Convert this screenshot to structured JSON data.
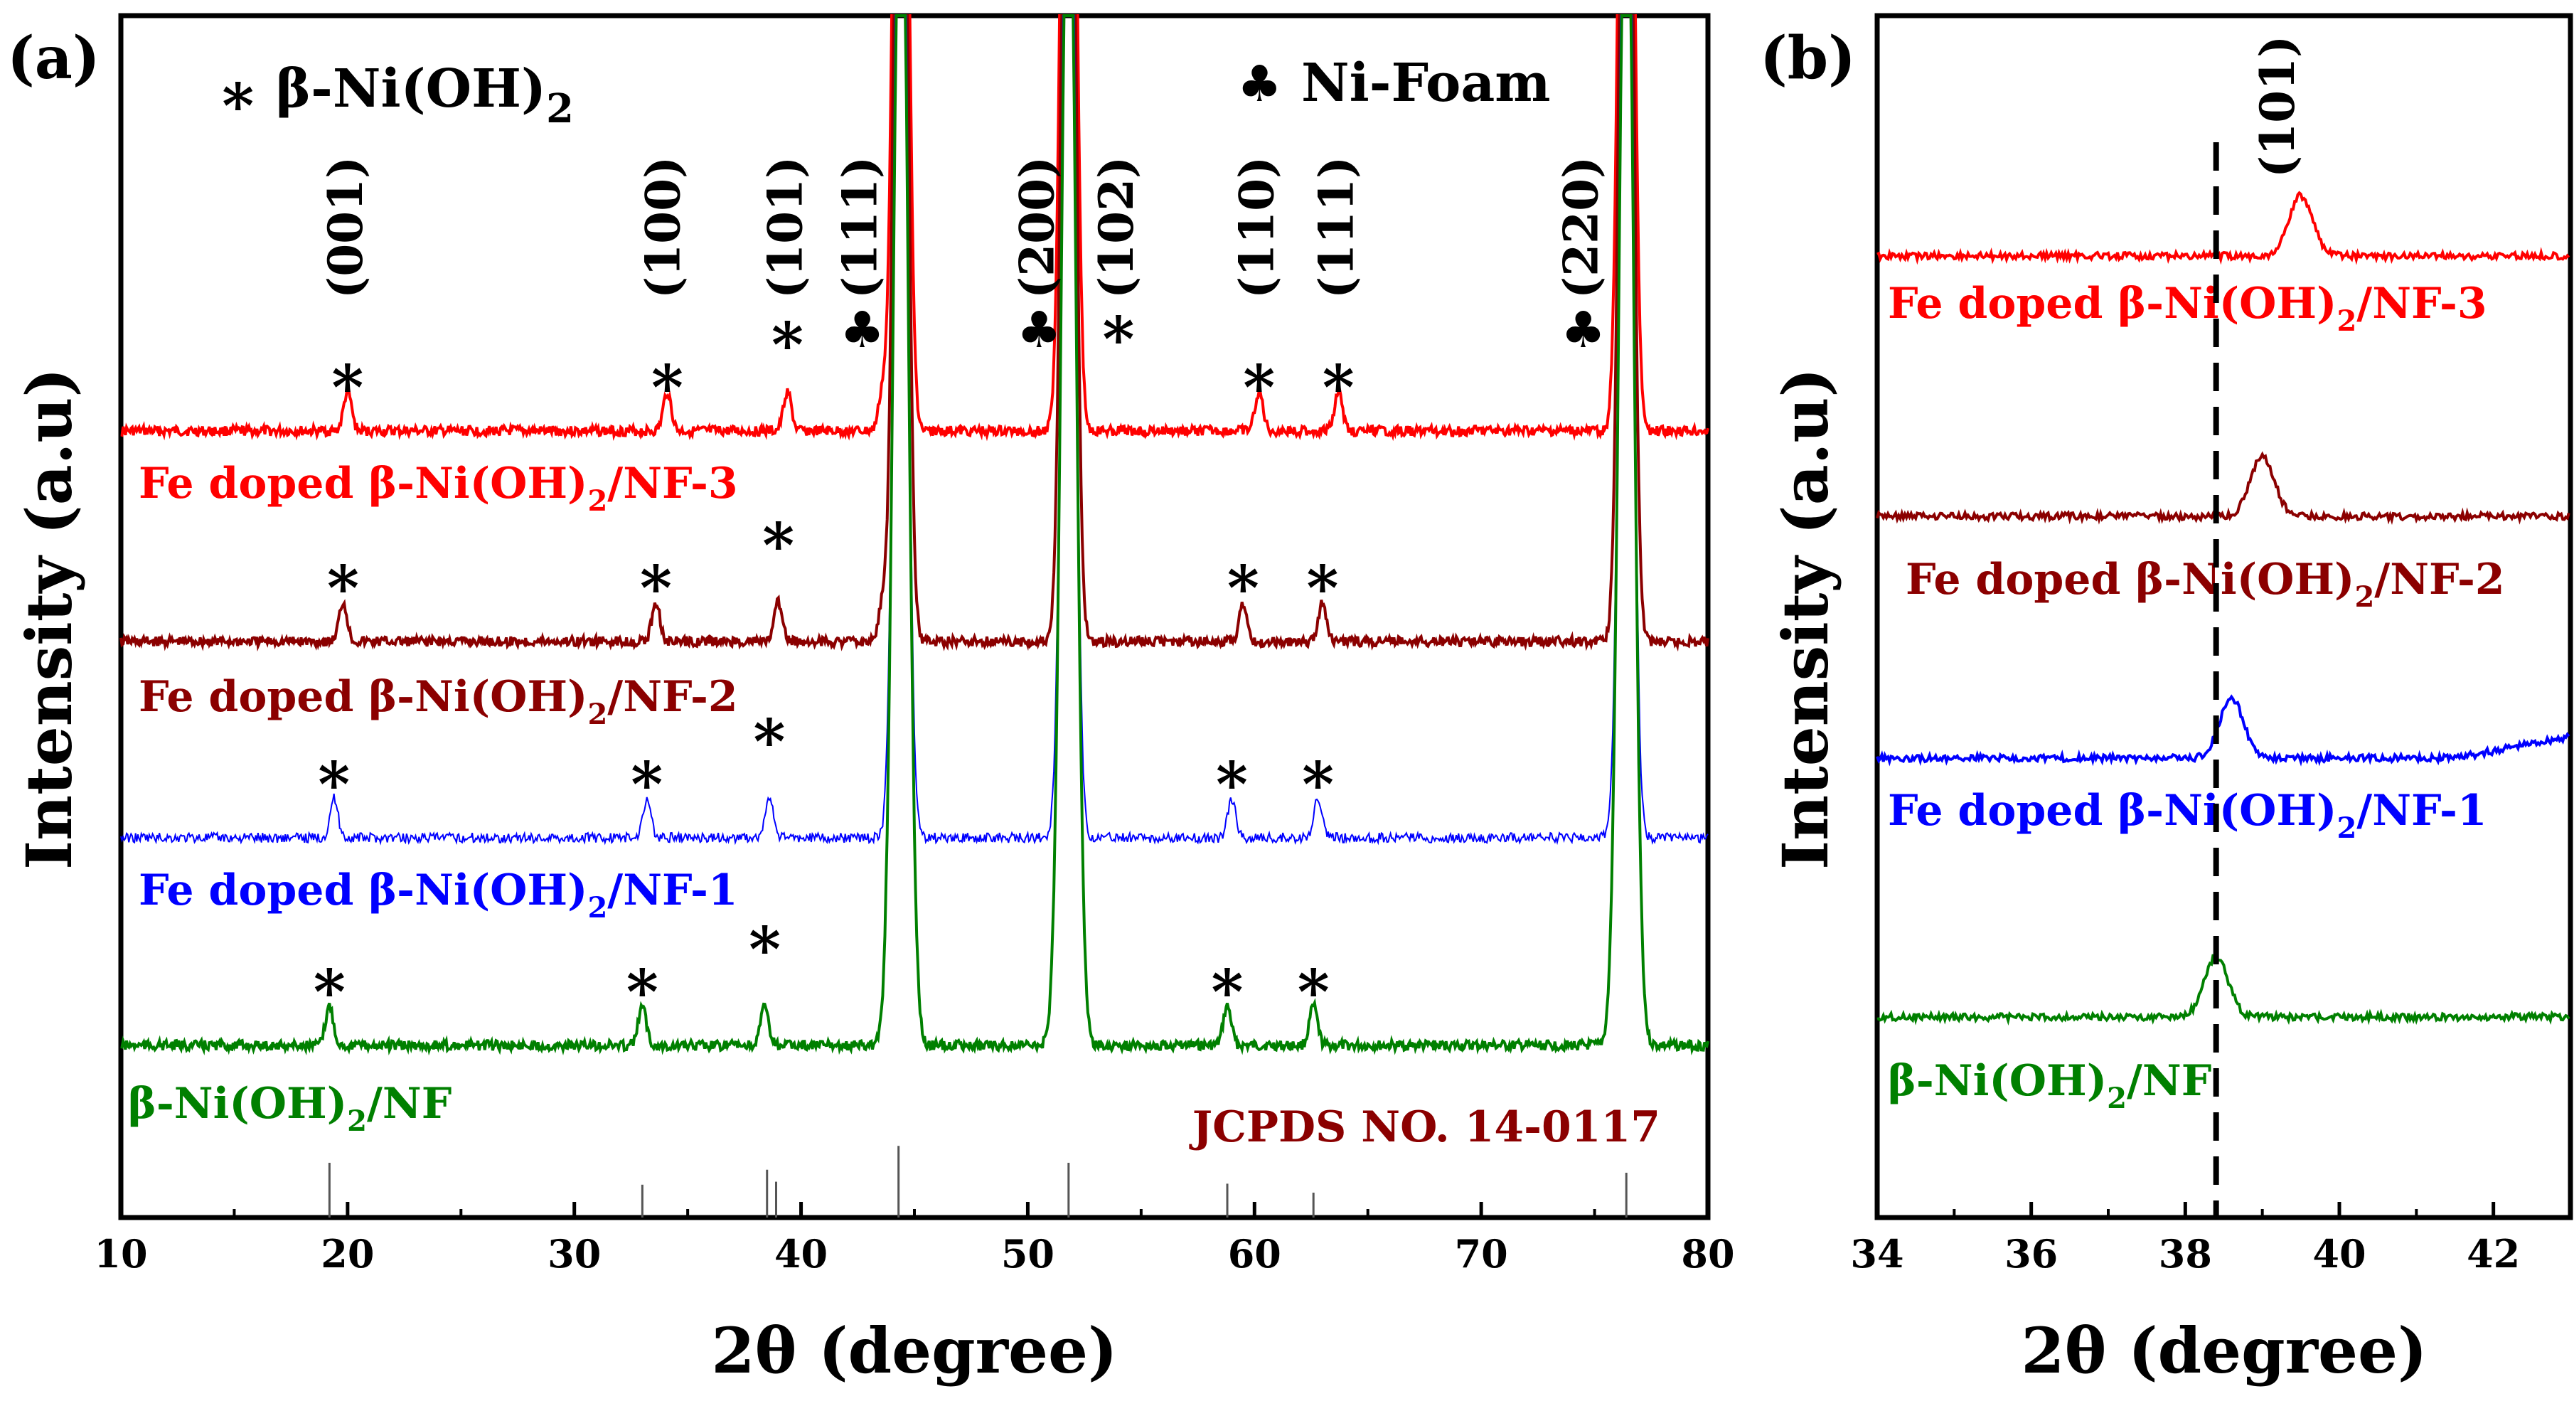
{
  "chart_data": [
    {
      "panel": "(a)",
      "type": "line",
      "xlabel": "2θ  (degree)",
      "ylabel": "Intensity (a.u)",
      "xlim": [
        10,
        80
      ],
      "x_ticks": [
        "10",
        "20",
        "30",
        "40",
        "50",
        "60",
        "70",
        "80"
      ],
      "legend": [
        {
          "symbol": "∗",
          "label": "β-Ni(OH)",
          "sub": "2"
        },
        {
          "symbol": "♣",
          "label": "Ni-Foam",
          "sub": ""
        }
      ],
      "reference_label": "JCPDS NO. 14-0117",
      "reference_lines": [
        {
          "x": 19.2,
          "h": 0.55
        },
        {
          "x": 33.0,
          "h": 0.33
        },
        {
          "x": 38.5,
          "h": 0.48
        },
        {
          "x": 38.9,
          "h": 0.36
        },
        {
          "x": 44.3,
          "h": 0.72
        },
        {
          "x": 51.8,
          "h": 0.55
        },
        {
          "x": 58.8,
          "h": 0.34
        },
        {
          "x": 62.6,
          "h": 0.25
        },
        {
          "x": 76.4,
          "h": 0.45
        }
      ],
      "peak_labels": [
        {
          "x": 20.0,
          "text": "(001)"
        },
        {
          "x": 34.0,
          "text": "(100)"
        },
        {
          "x": 39.4,
          "text": "(101)"
        },
        {
          "x": 42.7,
          "text": "(111)"
        },
        {
          "x": 50.5,
          "text": "(200)"
        },
        {
          "x": 54.0,
          "text": "(102)"
        },
        {
          "x": 60.2,
          "text": "(110)"
        },
        {
          "x": 63.7,
          "text": "(111)"
        },
        {
          "x": 74.5,
          "text": "(220)"
        }
      ],
      "foam_peaks": [
        44.4,
        51.8,
        76.4
      ],
      "series": [
        {
          "name": "Fe doped β-Ni(OH)",
          "sub": "2",
          "suffix": "/NF-3",
          "color": "#ff0000",
          "peaks": [
            20.0,
            34.1,
            39.4,
            43.6,
            60.2,
            63.7
          ],
          "star_peaks": [
            20.0,
            34.1,
            39.4,
            60.2,
            63.7
          ],
          "club_peaks": [
            42.7,
            50.5,
            74.5
          ]
        },
        {
          "name": "Fe doped β-Ni(OH)",
          "sub": "2",
          "suffix": "/NF-2",
          "color": "#8b0000",
          "peaks": [
            19.8,
            33.6,
            39.0,
            43.6,
            59.5,
            63.0
          ],
          "star_peaks": [
            19.8,
            33.6,
            39.0,
            59.5,
            63.0
          ],
          "club_peaks": []
        },
        {
          "name": "Fe doped β-Ni(OH)",
          "sub": "2",
          "suffix": "/NF-1",
          "color": "#0000ff",
          "peaks": [
            19.4,
            33.2,
            38.6,
            59.0,
            62.8
          ],
          "star_peaks": [
            19.4,
            33.2,
            38.6,
            59.0,
            62.8
          ],
          "club_peaks": []
        },
        {
          "name": "β-Ni(OH)",
          "sub": "2",
          "suffix": "/NF",
          "color": "#008000",
          "peaks": [
            19.2,
            33.0,
            38.4,
            58.8,
            62.6
          ],
          "star_peaks": [
            19.2,
            33.0,
            38.4,
            58.8,
            62.6
          ],
          "club_peaks": []
        }
      ]
    },
    {
      "panel": "(b)",
      "type": "line",
      "xlabel": "2θ  (degree)",
      "ylabel": "Intensity (a.u)",
      "xlim": [
        34,
        43
      ],
      "x_ticks": [
        "34",
        "36",
        "38",
        "40",
        "42"
      ],
      "dashed_line_x": 38.4,
      "peak_label": "(101)",
      "series": [
        {
          "name": "Fe doped β-Ni(OH)",
          "sub": "2",
          "suffix": "/NF-3",
          "color": "#ff0000",
          "peak": 39.5
        },
        {
          "name": "Fe doped β-Ni(OH)",
          "sub": "2",
          "suffix": "/NF-2",
          "color": "#8b0000",
          "peak": 39.0
        },
        {
          "name": "Fe doped β-Ni(OH)",
          "sub": "2",
          "suffix": "/NF-1",
          "color": "#0000ff",
          "peak": 38.6
        },
        {
          "name": "β-Ni(OH)",
          "sub": "2",
          "suffix": "/NF",
          "color": "#008000",
          "peak": 38.4
        }
      ]
    }
  ]
}
